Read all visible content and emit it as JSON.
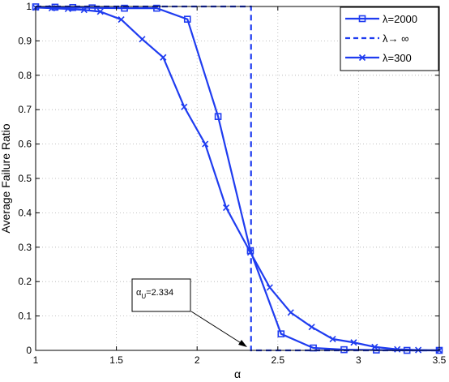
{
  "chart_data": {
    "type": "line",
    "xlabel": "α",
    "ylabel": "Average Failure Ratio",
    "xlim": [
      1,
      3.5
    ],
    "ylim": [
      0,
      1
    ],
    "xticks": [
      "1",
      "1.5",
      "2",
      "2.5",
      "3",
      "3.5"
    ],
    "yticks": [
      "0",
      "0.1",
      "0.2",
      "0.3",
      "0.4",
      "0.5",
      "0.6",
      "0.7",
      "0.8",
      "0.9",
      "1"
    ],
    "grid": true,
    "legend_position": "top-right",
    "color": "#1f3cf0",
    "series": [
      {
        "name": "λ=2000",
        "marker": "square",
        "line": "solid",
        "x": [
          1.0,
          1.12,
          1.23,
          1.35,
          1.55,
          1.75,
          1.94,
          2.13,
          2.33,
          2.52,
          2.72,
          2.91,
          3.11,
          3.3,
          3.5
        ],
        "y": [
          0.999,
          0.998,
          0.997,
          0.996,
          0.995,
          0.995,
          0.963,
          0.68,
          0.29,
          0.048,
          0.007,
          0.002,
          0.001,
          0.0,
          0.0
        ]
      },
      {
        "name": "λ→ ∞",
        "marker": "none",
        "line": "dashed",
        "x": [
          1.0,
          2.334,
          2.334,
          3.5
        ],
        "y": [
          1.0,
          1.0,
          0.0,
          0.0
        ]
      },
      {
        "name": "λ=300",
        "marker": "x",
        "line": "solid",
        "x": [
          1.0,
          1.1,
          1.2,
          1.3,
          1.4,
          1.53,
          1.66,
          1.79,
          1.92,
          2.05,
          2.18,
          2.33,
          2.45,
          2.58,
          2.71,
          2.84,
          2.97,
          3.1,
          3.24,
          3.37,
          3.5
        ],
        "y": [
          0.997,
          0.995,
          0.993,
          0.99,
          0.985,
          0.962,
          0.905,
          0.852,
          0.708,
          0.6,
          0.415,
          0.285,
          0.183,
          0.11,
          0.068,
          0.033,
          0.023,
          0.01,
          0.003,
          0.001,
          0.0
        ]
      }
    ],
    "annotation": {
      "text_main": "α",
      "text_sub": "U",
      "text_value": "=2.334",
      "arrow_target": [
        2.334,
        0.0
      ]
    }
  }
}
